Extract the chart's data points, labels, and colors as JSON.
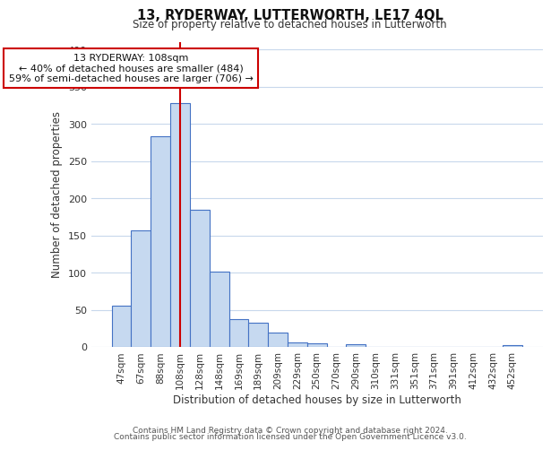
{
  "title": "13, RYDERWAY, LUTTERWORTH, LE17 4QL",
  "subtitle": "Size of property relative to detached houses in Lutterworth",
  "xlabel": "Distribution of detached houses by size in Lutterworth",
  "ylabel": "Number of detached properties",
  "categories": [
    "47sqm",
    "67sqm",
    "88sqm",
    "108sqm",
    "128sqm",
    "148sqm",
    "169sqm",
    "189sqm",
    "209sqm",
    "229sqm",
    "250sqm",
    "270sqm",
    "290sqm",
    "310sqm",
    "331sqm",
    "351sqm",
    "371sqm",
    "391sqm",
    "412sqm",
    "432sqm",
    "452sqm"
  ],
  "values": [
    55,
    157,
    283,
    328,
    185,
    101,
    37,
    32,
    19,
    6,
    5,
    0,
    4,
    0,
    0,
    0,
    0,
    0,
    0,
    0,
    3
  ],
  "bar_color": "#c6d9f0",
  "bar_edge_color": "#4472c4",
  "vline_x_idx": 3,
  "vline_color": "#cc0000",
  "annotation_line1": "13 RYDERWAY: 108sqm",
  "annotation_line2": "← 40% of detached houses are smaller (484)",
  "annotation_line3": "59% of semi-detached houses are larger (706) →",
  "ylim": [
    0,
    410
  ],
  "yticks": [
    0,
    50,
    100,
    150,
    200,
    250,
    300,
    350,
    400
  ],
  "footer_line1": "Contains HM Land Registry data © Crown copyright and database right 2024.",
  "footer_line2": "Contains public sector information licensed under the Open Government Licence v3.0.",
  "background_color": "#ffffff",
  "grid_color": "#c8d8ec",
  "title_fontsize": 10.5,
  "subtitle_fontsize": 8.5,
  "tick_fontsize": 7.5,
  "ylabel_fontsize": 8.5,
  "xlabel_fontsize": 8.5,
  "footer_fontsize": 6.5
}
